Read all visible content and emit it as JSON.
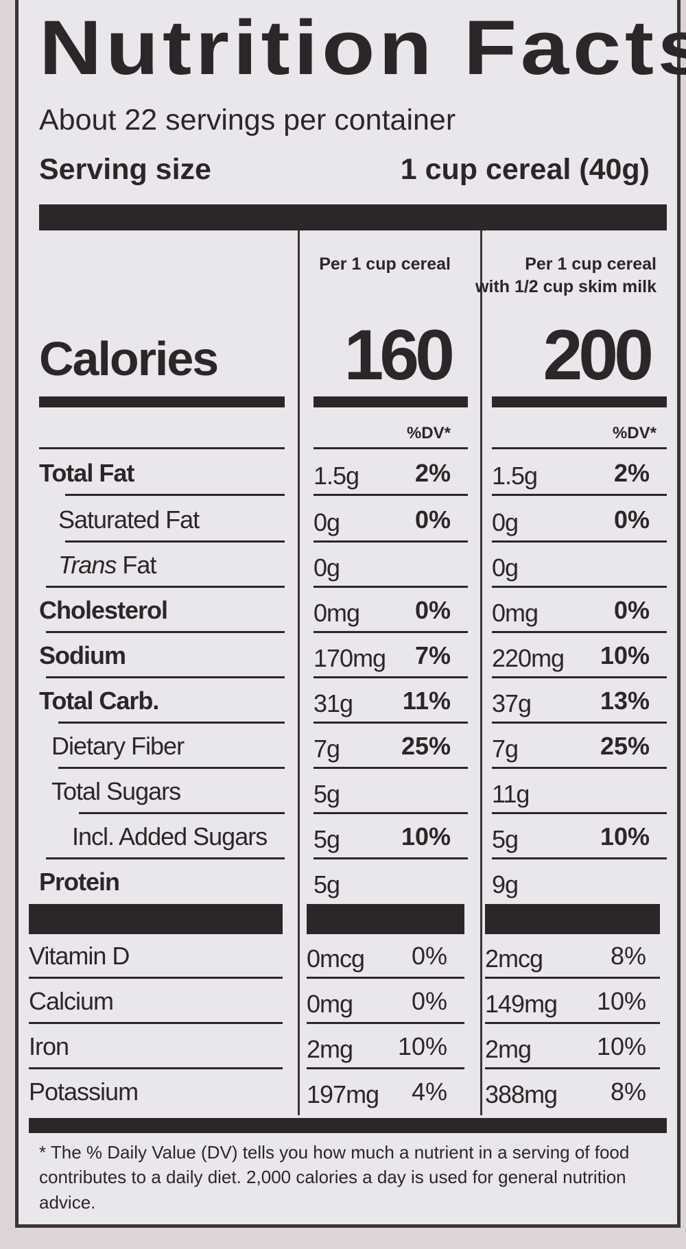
{
  "title": "Nutrition Facts",
  "servings_per_container": "About 22 servings per container",
  "serving_size": {
    "label": "Serving size",
    "value": "1 cup cereal (40g)"
  },
  "columns": [
    {
      "heading_line1": "",
      "heading_line2": "Per 1 cup cereal",
      "calories": "160",
      "dv_header": "%DV*"
    },
    {
      "heading_line1": "Per 1 cup cereal",
      "heading_line2": "with 1/2 cup skim milk",
      "calories": "200",
      "dv_header": "%DV*"
    }
  ],
  "calories_label": "Calories",
  "nutrients": [
    {
      "label": "Total Fat",
      "c1": "1.5g",
      "d1": "2%",
      "c2": "1.5g",
      "d2": "2%"
    },
    {
      "label": "Saturated Fat",
      "c1": "0g",
      "d1": "0%",
      "c2": "0g",
      "d2": "0%"
    },
    {
      "label_italic": "Trans",
      "label": " Fat",
      "c1": "0g",
      "d1": "",
      "c2": "0g",
      "d2": ""
    },
    {
      "label": "Cholesterol",
      "c1": "0mg",
      "d1": "0%",
      "c2": "0mg",
      "d2": "0%"
    },
    {
      "label": "Sodium",
      "c1": "170mg",
      "d1": "7%",
      "c2": "220mg",
      "d2": "10%"
    },
    {
      "label": "Total Carb.",
      "c1": "31g",
      "d1": "11%",
      "c2": "37g",
      "d2": "13%"
    },
    {
      "label": "Dietary Fiber",
      "c1": "7g",
      "d1": "25%",
      "c2": "7g",
      "d2": "25%"
    },
    {
      "label": "Total Sugars",
      "c1": "5g",
      "d1": "",
      "c2": "11g",
      "d2": ""
    },
    {
      "label": "Incl. Added Sugars",
      "c1": "5g",
      "d1": "10%",
      "c2": "5g",
      "d2": "10%"
    },
    {
      "label": "Protein",
      "c1": "5g",
      "d1": "",
      "c2": "9g",
      "d2": ""
    }
  ],
  "vitamins": [
    {
      "label": "Vitamin D",
      "c1": "0mcg",
      "d1": "0%",
      "c2": "2mcg",
      "d2": "8%"
    },
    {
      "label": "Calcium",
      "c1": "0mg",
      "d1": "0%",
      "c2": "149mg",
      "d2": "10%"
    },
    {
      "label": "Iron",
      "c1": "2mg",
      "d1": "10%",
      "c2": "2mg",
      "d2": "10%"
    },
    {
      "label": "Potassium",
      "c1": "197mg",
      "d1": "4%",
      "c2": "388mg",
      "d2": "8%"
    }
  ],
  "footnote": "* The % Daily Value (DV) tells you how much a nutrient in a serving of food contributes to a daily diet. 2,000 calories a day is used for general nutrition advice."
}
